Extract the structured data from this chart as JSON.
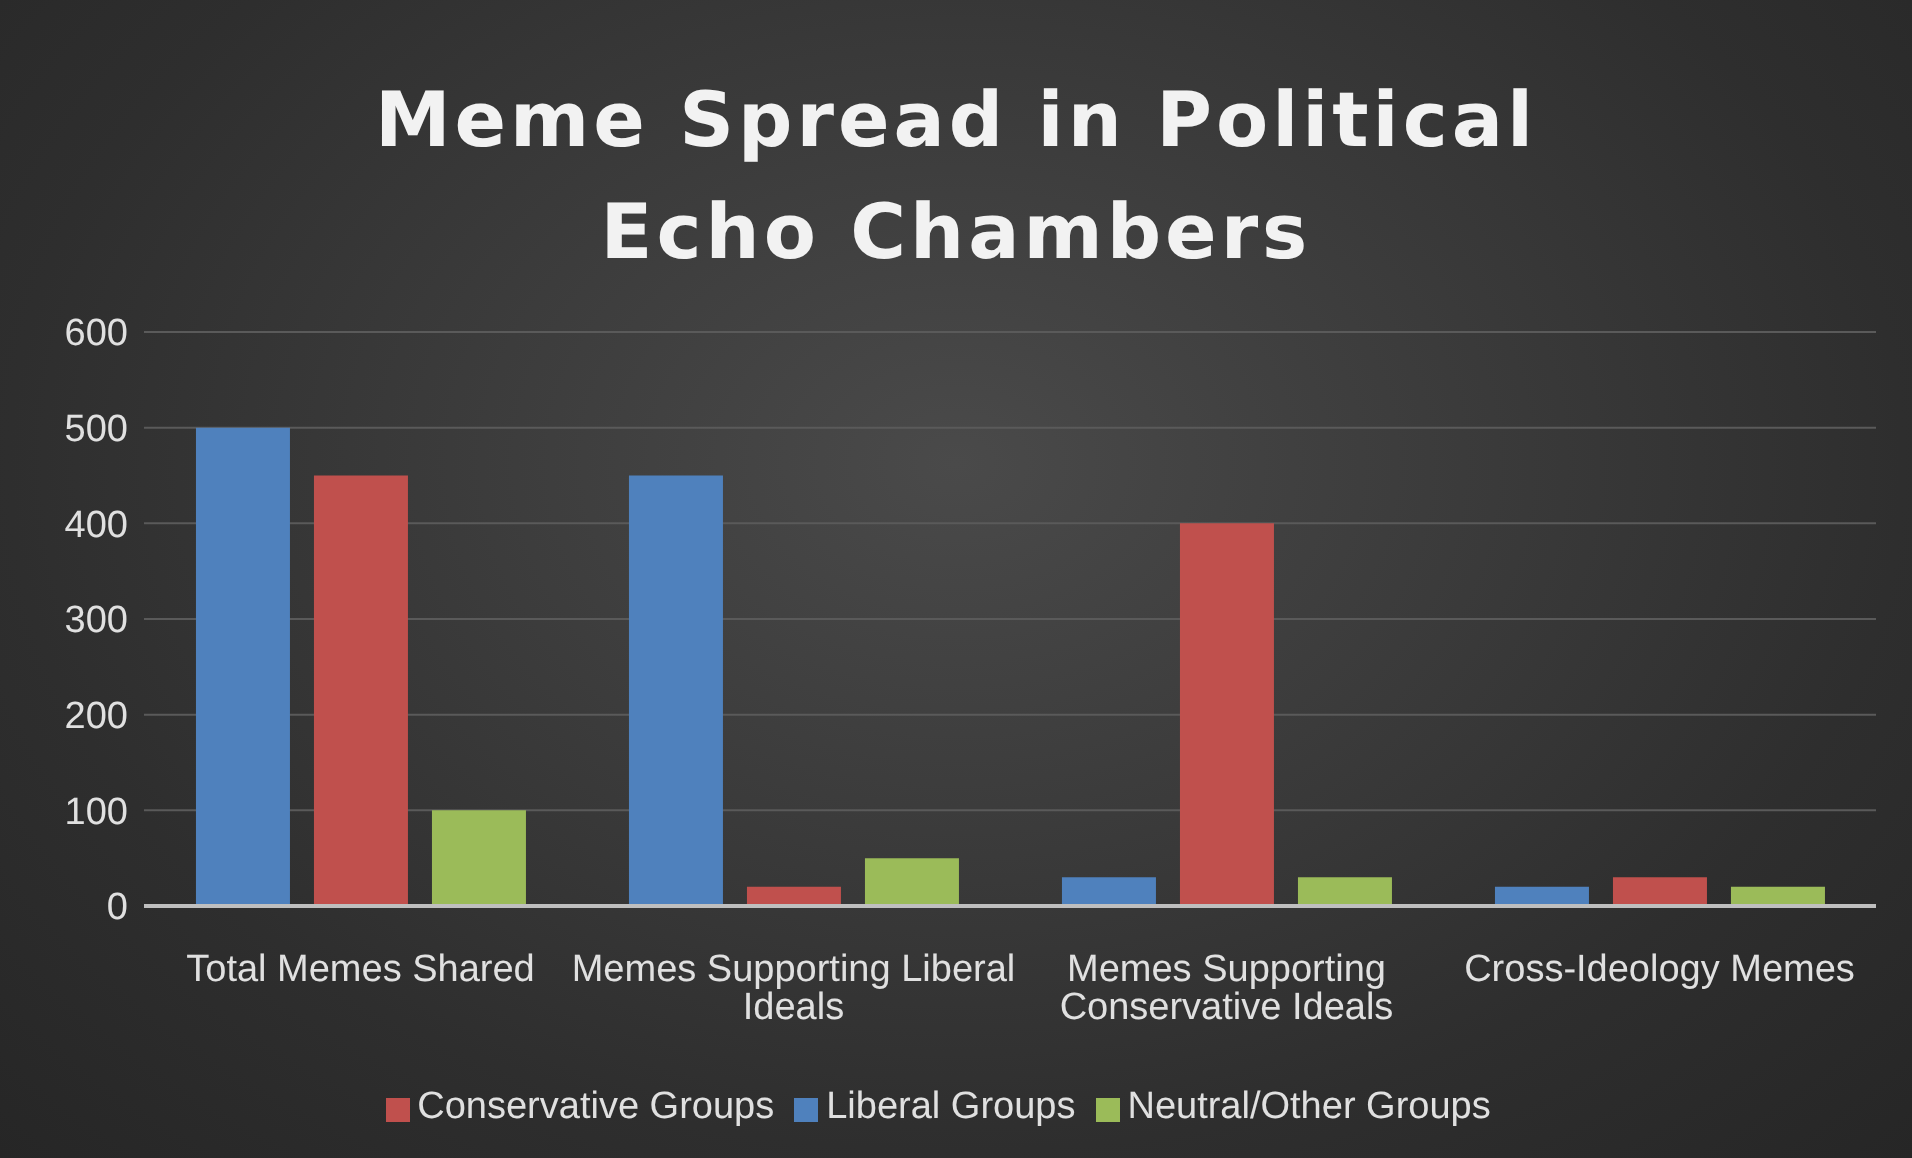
{
  "chart_data": {
    "type": "bar",
    "title": "Meme Spread in Political Echo Chambers",
    "categories": [
      "Total Memes Shared",
      "Memes Supporting Liberal Ideals",
      "Memes Supporting Conservative Ideals",
      "Cross-Ideology Memes"
    ],
    "series": [
      {
        "name": "Liberal Groups",
        "color": "#4f81bd",
        "values": [
          500,
          450,
          30,
          20
        ]
      },
      {
        "name": "Conservative Groups",
        "color": "#c0504d",
        "values": [
          450,
          20,
          400,
          30
        ]
      },
      {
        "name": "Neutral/Other Groups",
        "color": "#9bbb59",
        "values": [
          100,
          50,
          30,
          20
        ]
      }
    ],
    "ylim": [
      0,
      600
    ],
    "yticks": [
      0,
      100,
      200,
      300,
      400,
      500,
      600
    ],
    "grid": "y",
    "legend": "bottom"
  }
}
